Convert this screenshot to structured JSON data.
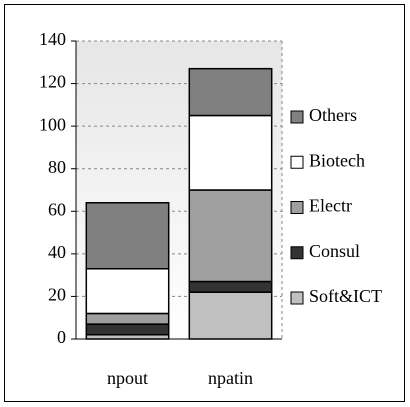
{
  "chart_data": {
    "type": "stacked_bar",
    "categories": [
      "npout",
      "npatin"
    ],
    "series": [
      {
        "name": "Soft&ICT",
        "color": "#c0c0c0",
        "values": [
          2,
          22
        ]
      },
      {
        "name": "Consul",
        "color": "#333333",
        "values": [
          5,
          5
        ]
      },
      {
        "name": "Electr",
        "color": "#a0a0a0",
        "values": [
          5,
          43
        ]
      },
      {
        "name": "Biotech",
        "color": "#ffffff",
        "values": [
          21,
          35
        ]
      },
      {
        "name": "Others",
        "color": "#808080",
        "values": [
          31,
          22
        ]
      }
    ],
    "ylim": [
      0,
      140
    ],
    "yticks": [
      0,
      20,
      40,
      60,
      80,
      100,
      120,
      140
    ],
    "grid": true,
    "legend": "right"
  }
}
